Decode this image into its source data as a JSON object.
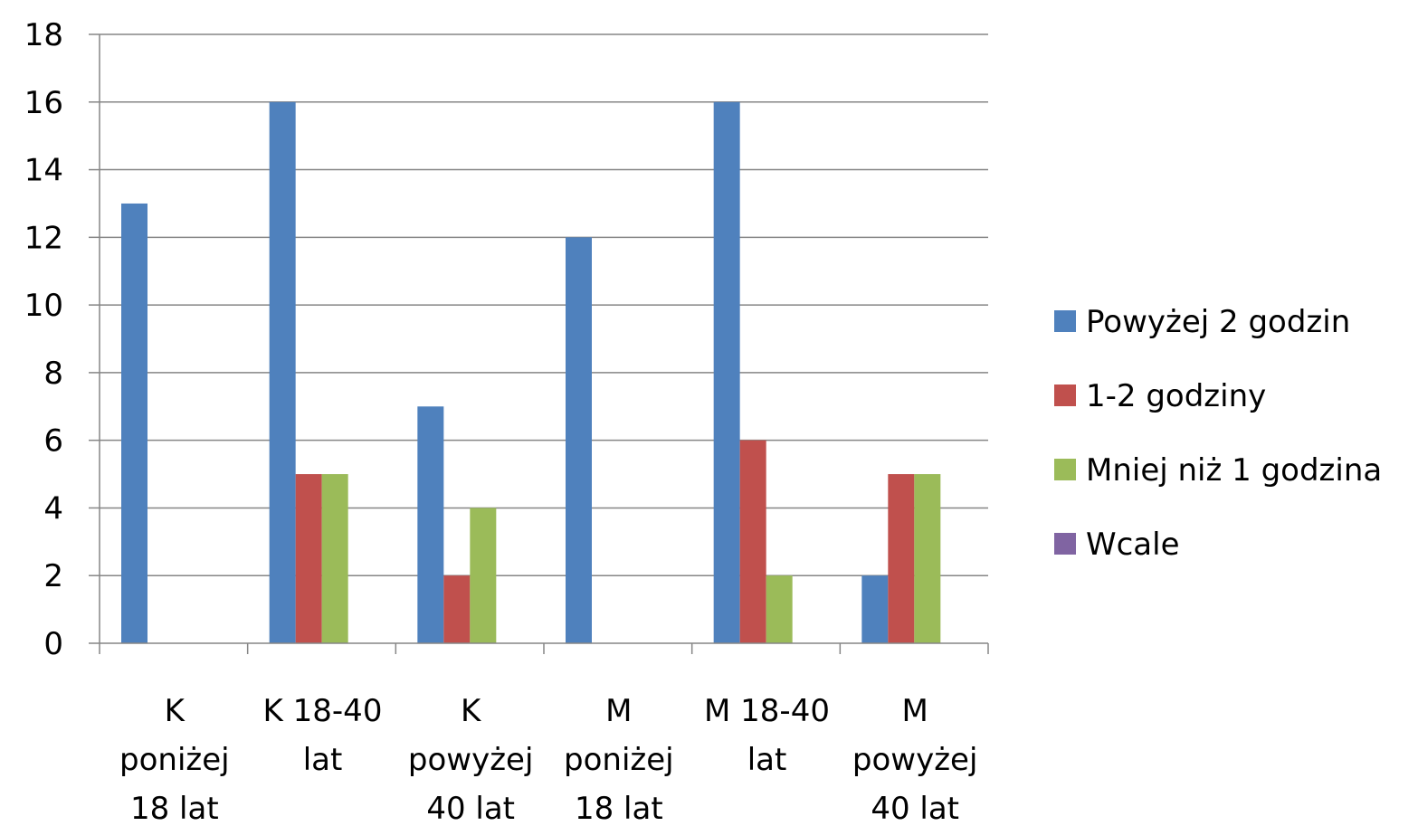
{
  "chart_data": {
    "type": "bar",
    "categories": [
      [
        "K",
        "poniżej",
        "18 lat"
      ],
      [
        "K 18-40",
        "lat"
      ],
      [
        "K",
        "powyżej",
        "40 lat"
      ],
      [
        "M",
        "poniżej",
        "18 lat"
      ],
      [
        "M 18-40",
        "lat"
      ],
      [
        "M",
        "powyżej",
        "40 lat"
      ]
    ],
    "series": [
      {
        "name": "Powyżej 2 godzin",
        "color": "#4F81BD",
        "values": [
          13,
          16,
          7,
          12,
          16,
          2
        ]
      },
      {
        "name": "1-2 godziny",
        "color": "#C0504D",
        "values": [
          0,
          5,
          2,
          0,
          6,
          5
        ]
      },
      {
        "name": "Mniej niż 1 godzina",
        "color": "#9BBB59",
        "values": [
          0,
          5,
          4,
          0,
          2,
          5
        ]
      },
      {
        "name": "Wcale",
        "color": "#8064A2",
        "values": [
          0,
          0,
          0,
          0,
          0,
          0
        ]
      }
    ],
    "ylim": [
      0,
      18
    ],
    "yticks": [
      0,
      2,
      4,
      6,
      8,
      10,
      12,
      14,
      16,
      18
    ],
    "grid": true,
    "legend_position": "right"
  }
}
